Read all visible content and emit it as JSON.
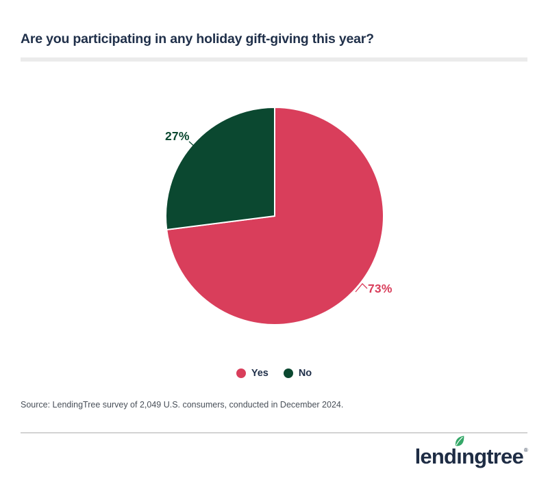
{
  "header": {
    "title": "Are you participating in any holiday gift-giving this year?"
  },
  "chart_data": {
    "type": "pie",
    "title": "Are you participating in any holiday gift-giving this year?",
    "categories": [
      "Yes",
      "No"
    ],
    "values": [
      73,
      27
    ],
    "labels": [
      "73%",
      "27%"
    ],
    "colors": [
      "#D93E5B",
      "#0B4830"
    ],
    "start_angle": "12 o'clock",
    "direction": "clockwise",
    "slice_gap_stroke": "#FFFFFF",
    "legend_position": "bottom-center"
  },
  "legend": {
    "items": [
      {
        "label": "Yes",
        "color": "#D93E5B"
      },
      {
        "label": "No",
        "color": "#0B4830"
      }
    ]
  },
  "footer": {
    "source": "Source: LendingTree survey of 2,049 U.S. consumers, conducted in December 2024.",
    "logo": {
      "text_before_i": "lend",
      "i_char": "ı",
      "text_after_i": "ngtree",
      "registered": "®"
    }
  },
  "colors": {
    "title_navy": "#20304A",
    "yes_pink": "#D93E5B",
    "no_green": "#0B4830",
    "source_text": "#484F58",
    "leaf_green": "#34A868",
    "logo_navy": "#1E2C44",
    "title_rule": "#EBEBEB",
    "footer_divider": "#D2D2D2"
  }
}
